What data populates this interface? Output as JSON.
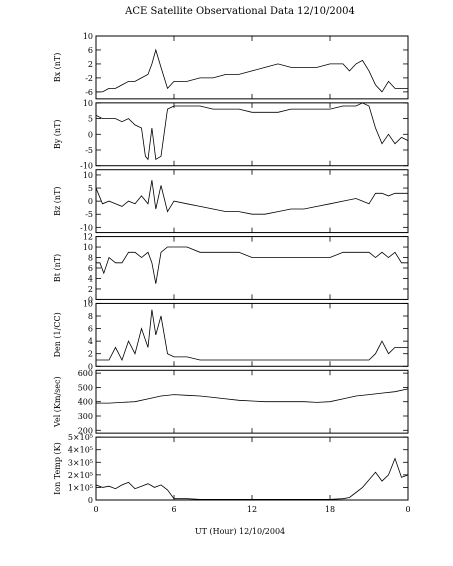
{
  "figure": {
    "title": "ACE Satellite Observational Data   12/10/2004",
    "xlabel": "UT (Hour)  12/10/2004",
    "xticks": [
      "0",
      "6",
      "12",
      "18",
      "0"
    ]
  },
  "chart_data": [
    {
      "type": "line",
      "ylabel": "Bx (nT)",
      "ylim": [
        -8,
        10
      ],
      "yticks": [
        "10",
        "6",
        "2",
        "-2",
        "-6"
      ],
      "ytick_values": [
        10,
        6,
        2,
        -2,
        -6
      ],
      "x": [
        0,
        0.5,
        1,
        1.5,
        2,
        2.5,
        3,
        3.5,
        4,
        4.3,
        4.6,
        5,
        5.5,
        6,
        7,
        8,
        9,
        10,
        11,
        12,
        13,
        14,
        15,
        16,
        17,
        18,
        19,
        19.5,
        20,
        20.5,
        21,
        21.5,
        22,
        22.5,
        23,
        23.5,
        24
      ],
      "series": [
        {
          "values": [
            -6,
            -6,
            -5,
            -5,
            -4,
            -3,
            -3,
            -2,
            -1,
            2,
            6,
            1,
            -5,
            -3,
            -3,
            -2,
            -2,
            -1,
            -1,
            0,
            1,
            2,
            1,
            1,
            1,
            2,
            2,
            0,
            2,
            3,
            0,
            -4,
            -6,
            -3,
            -5,
            -5,
            -5
          ]
        }
      ]
    },
    {
      "type": "line",
      "ylabel": "By (nT)",
      "ylim": [
        -10,
        10
      ],
      "yticks": [
        "10",
        "5",
        "0",
        "-5",
        "-10"
      ],
      "ytick_values": [
        10,
        5,
        0,
        -5,
        -10
      ],
      "x": [
        0,
        0.5,
        1,
        1.5,
        2,
        2.5,
        3,
        3.5,
        3.8,
        4,
        4.3,
        4.6,
        5,
        5.5,
        6,
        7,
        8,
        9,
        10,
        11,
        12,
        13,
        14,
        15,
        16,
        17,
        18,
        19,
        20,
        20.5,
        21,
        21.5,
        22,
        22.5,
        23,
        23.5,
        24
      ],
      "series": [
        {
          "values": [
            6,
            5,
            5,
            5,
            4,
            5,
            3,
            2,
            -7,
            -8,
            2,
            -8,
            -7,
            8,
            9,
            9,
            9,
            8,
            8,
            8,
            7,
            7,
            7,
            8,
            8,
            8,
            8,
            9,
            9,
            10,
            9,
            2,
            -3,
            0,
            -3,
            -1,
            -2
          ]
        }
      ]
    },
    {
      "type": "line",
      "ylabel": "Bz (nT)",
      "ylim": [
        -12,
        12
      ],
      "yticks": [
        "10",
        "5",
        "0",
        "-5",
        "-10"
      ],
      "ytick_values": [
        10,
        5,
        0,
        -5,
        -10
      ],
      "x": [
        0,
        0.5,
        1,
        1.5,
        2,
        2.5,
        3,
        3.5,
        4,
        4.3,
        4.6,
        5,
        5.5,
        6,
        7,
        8,
        9,
        10,
        11,
        12,
        13,
        14,
        15,
        16,
        17,
        18,
        19,
        20,
        20.5,
        21,
        21.5,
        22,
        22.5,
        23,
        23.5,
        24
      ],
      "series": [
        {
          "values": [
            5,
            -1,
            0,
            -1,
            -2,
            0,
            -1,
            2,
            -1,
            8,
            -3,
            6,
            -4,
            0,
            -1,
            -2,
            -3,
            -4,
            -4,
            -5,
            -5,
            -4,
            -3,
            -3,
            -2,
            -1,
            0,
            1,
            0,
            -1,
            3,
            3,
            2,
            3,
            3,
            3
          ]
        }
      ]
    },
    {
      "type": "line",
      "ylabel": "Bt (nT)",
      "ylim": [
        0,
        12
      ],
      "yticks": [
        "12",
        "10",
        "8",
        "6",
        "4",
        "2",
        "0"
      ],
      "ytick_values": [
        12,
        10,
        8,
        6,
        4,
        2,
        0
      ],
      "x": [
        0,
        0.3,
        0.6,
        1,
        1.5,
        2,
        2.5,
        3,
        3.5,
        4,
        4.3,
        4.6,
        5,
        5.5,
        6,
        7,
        8,
        9,
        10,
        11,
        12,
        13,
        14,
        15,
        16,
        17,
        18,
        19,
        20,
        21,
        21.5,
        22,
        22.5,
        23,
        23.5,
        24
      ],
      "series": [
        {
          "values": [
            7,
            7,
            5,
            8,
            7,
            7,
            9,
            9,
            8,
            9,
            7,
            3,
            9,
            10,
            10,
            10,
            9,
            9,
            9,
            9,
            8,
            8,
            8,
            8,
            8,
            8,
            8,
            9,
            9,
            9,
            8,
            9,
            8,
            9,
            7,
            7
          ]
        }
      ]
    },
    {
      "type": "line",
      "ylabel": "Den (1/CC)",
      "ylim": [
        0,
        10
      ],
      "yticks": [
        "10",
        "8",
        "6",
        "4",
        "2",
        "0"
      ],
      "ytick_values": [
        10,
        8,
        6,
        4,
        2,
        0
      ],
      "x": [
        0,
        0.5,
        1,
        1.5,
        2,
        2.5,
        3,
        3.5,
        4,
        4.3,
        4.6,
        5,
        5.5,
        6,
        7,
        8,
        9,
        10,
        11,
        12,
        13,
        14,
        15,
        16,
        17,
        18,
        19,
        20,
        21,
        21.5,
        22,
        22.5,
        23,
        23.5,
        24
      ],
      "series": [
        {
          "values": [
            1,
            1,
            1,
            3,
            1,
            4,
            2,
            6,
            3,
            9,
            5,
            8,
            2,
            1.5,
            1.5,
            1,
            1,
            1,
            1,
            1,
            1,
            1,
            1,
            1,
            1,
            1,
            1,
            1,
            1,
            2,
            4,
            2,
            3,
            3,
            3
          ]
        }
      ]
    },
    {
      "type": "line",
      "ylabel": "Vel (Km/sec)",
      "ylim": [
        180,
        620
      ],
      "yticks": [
        "600",
        "500",
        "400",
        "300",
        "200"
      ],
      "ytick_values": [
        600,
        500,
        400,
        300,
        200
      ],
      "x": [
        0,
        1,
        2,
        3,
        4,
        5,
        6,
        7,
        8,
        9,
        10,
        11,
        12,
        13,
        14,
        15,
        16,
        17,
        18,
        19,
        20,
        21,
        22,
        23,
        24
      ],
      "series": [
        {
          "values": [
            390,
            390,
            395,
            400,
            420,
            440,
            450,
            445,
            440,
            430,
            420,
            410,
            405,
            400,
            400,
            400,
            400,
            395,
            400,
            420,
            440,
            450,
            460,
            470,
            490
          ]
        }
      ]
    },
    {
      "type": "line",
      "ylabel": "Ion Temp (K)",
      "ylim": [
        0,
        500000
      ],
      "yticks": [
        "5×10⁵",
        "4×10⁵",
        "3×10⁵",
        "2×10⁵",
        "1×10⁵",
        "0"
      ],
      "ytick_values": [
        500000,
        400000,
        300000,
        200000,
        100000,
        0
      ],
      "x": [
        0,
        0.5,
        1,
        1.5,
        2,
        2.5,
        3,
        3.5,
        4,
        4.5,
        5,
        5.5,
        6,
        7,
        8,
        9,
        10,
        11,
        12,
        13,
        14,
        15,
        16,
        17,
        18,
        19,
        19.5,
        20,
        20.5,
        21,
        21.5,
        22,
        22.5,
        23,
        23.5,
        24
      ],
      "series": [
        {
          "values": [
            120000,
            100000,
            110000,
            90000,
            120000,
            140000,
            90000,
            110000,
            130000,
            100000,
            120000,
            80000,
            10000,
            10000,
            5000,
            5000,
            5000,
            5000,
            5000,
            5000,
            5000,
            5000,
            5000,
            5000,
            5000,
            10000,
            20000,
            60000,
            100000,
            160000,
            220000,
            150000,
            200000,
            330000,
            180000,
            200000
          ]
        }
      ]
    }
  ]
}
